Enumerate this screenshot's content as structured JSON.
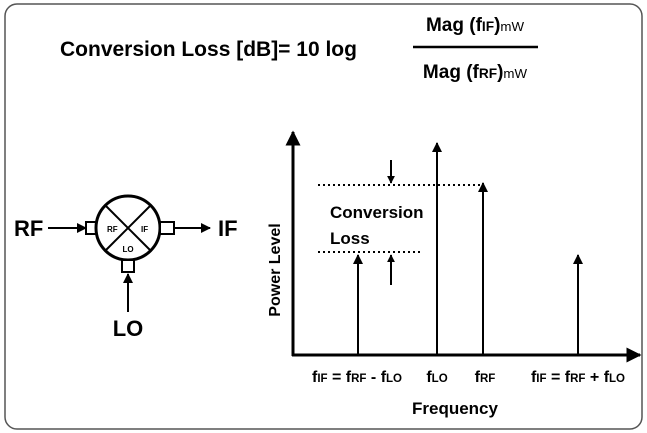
{
  "formula": {
    "lhs": "Conversion Loss [dB]= 10 log",
    "numerator": [
      "Mag (f",
      "IF",
      ")",
      "mW"
    ],
    "denominator": [
      "Mag (f",
      "RF",
      ")",
      "mW"
    ]
  },
  "mixer": {
    "input": "RF",
    "output": "IF",
    "local": "LO",
    "port_labels": [
      "RF",
      "IF",
      "LO"
    ]
  },
  "spectrum": {
    "y_label": "Power Level",
    "x_label": "Frequency",
    "annotation": [
      "Conversion",
      "Loss"
    ],
    "x_labels": [
      [
        "f",
        "IF",
        " = f",
        "RF",
        " - f",
        "LO"
      ],
      [
        "f",
        "LO"
      ],
      [
        "f",
        "RF"
      ],
      [
        "f",
        "IF",
        " = f",
        "RF",
        " + f",
        "LO"
      ]
    ]
  }
}
